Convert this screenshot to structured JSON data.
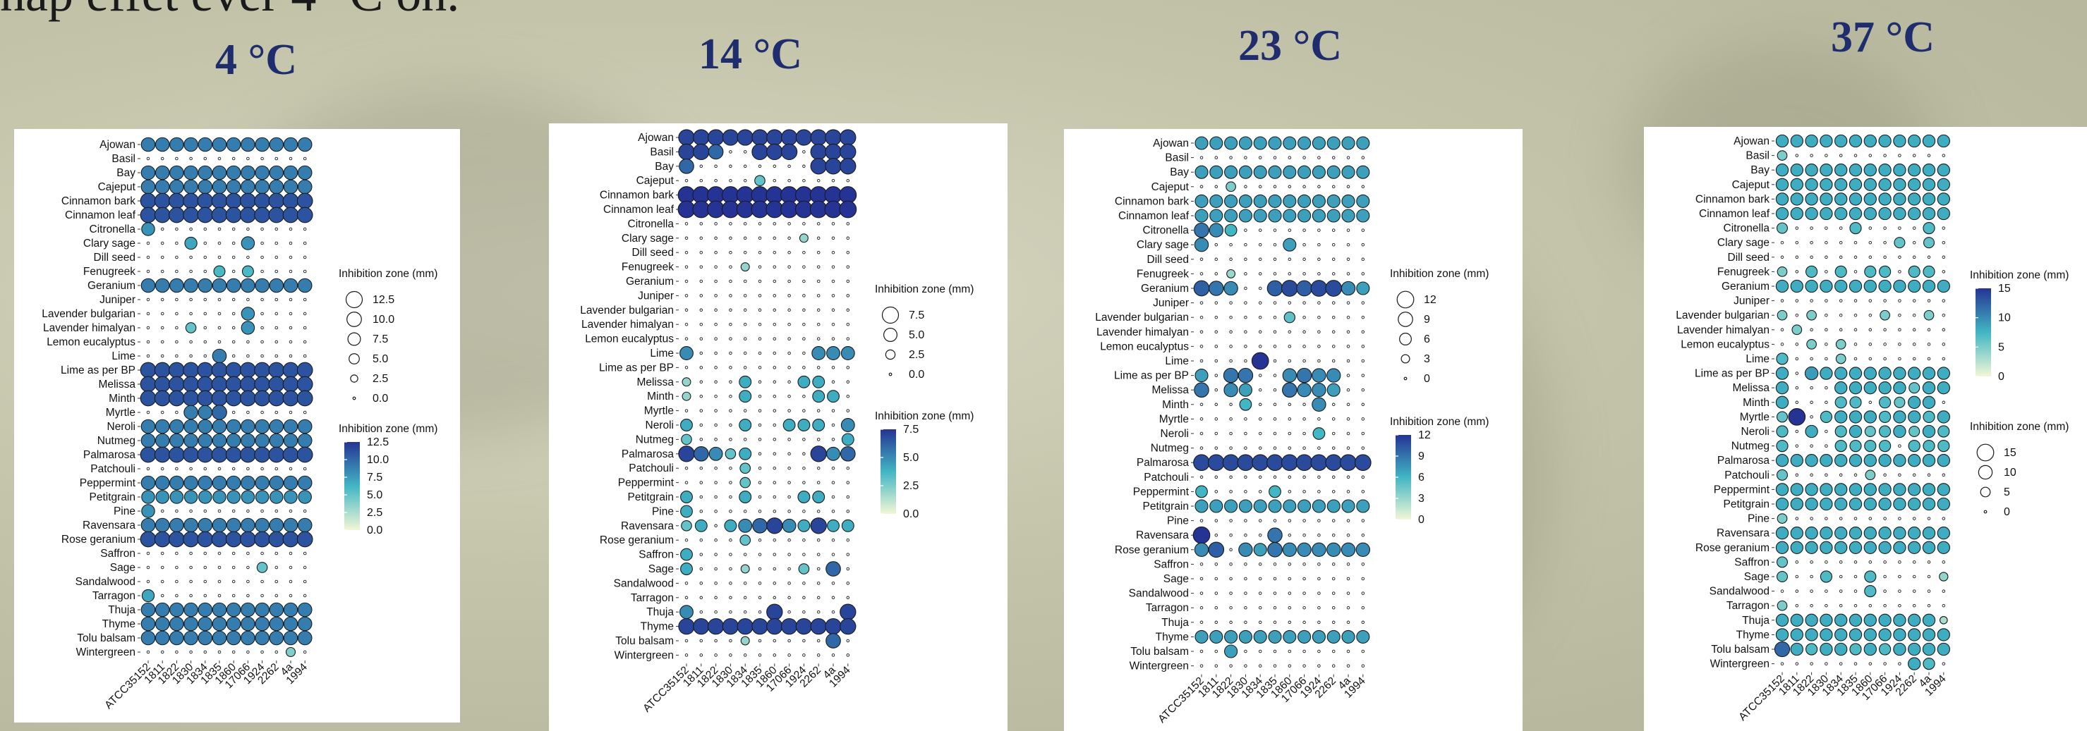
{
  "page": {
    "top_text": "nap effet ever 4 °C on.",
    "temperatures": [
      "4 °C",
      "14 °C",
      "23 °C",
      "37 °C"
    ]
  },
  "oils": [
    "Ajowan",
    "Basil",
    "Bay",
    "Cajeput",
    "Cinnamon bark",
    "Cinnamon leaf",
    "Citronella",
    "Clary sage",
    "Dill seed",
    "Fenugreek",
    "Geranium",
    "Juniper",
    "Lavender bulgarian",
    "Lavender himalyan",
    "Lemon eucalyptus",
    "Lime",
    "Lime as per BP",
    "Melissa",
    "Minth",
    "Myrtle",
    "Neroli",
    "Nutmeg",
    "Palmarosa",
    "Patchouli",
    "Peppermint",
    "Petitgrain",
    "Pine",
    "Ravensara",
    "Rose geranium",
    "Saffron",
    "Sage",
    "Sandalwood",
    "Tarragon",
    "Thuja",
    "Thyme",
    "Tolu balsam",
    "Wintergreen"
  ],
  "strains": [
    "ATCC35152",
    "1811",
    "1822",
    "1830",
    "1834",
    "1835",
    "1860",
    "17066",
    "1924",
    "2262",
    "4a",
    "1994"
  ],
  "colors": {
    "scale_low": "#f2f7d6",
    "scale_mid": "#41b6c4",
    "scale_high": "#253494",
    "title": "#1f2d6e"
  },
  "chart_data": [
    {
      "type": "bubble-matrix",
      "title": "4 °C",
      "legend_size_title": "Inhibition zone (mm)",
      "legend_size_values": [
        "12.5",
        "10.0",
        "7.5",
        "5.0",
        "2.5",
        "0.0"
      ],
      "legend_color_title": "Inhibition zone (mm)",
      "legend_color_values": [
        "12.5",
        "10.0",
        "7.5",
        "5.0",
        "2.5",
        "0.0"
      ],
      "max": 12.5,
      "full_rows": {
        "Ajowan": 9,
        "Bay": 9,
        "Cajeput": 9,
        "Cinnamon bark": 11,
        "Cinnamon leaf": 11,
        "Geranium": 9,
        "Lime as per BP": 11,
        "Melissa": 11,
        "Minth": 11,
        "Neroli": 9,
        "Nutmeg": 9,
        "Palmarosa": 11,
        "Peppermint": 9,
        "Petitgrain": 8,
        "Ravensara": 9,
        "Rose geranium": 11,
        "Thuja": 9,
        "Thyme": 9,
        "Tolu balsam": 9
      },
      "partial": {
        "Citronella": {
          "0": 8
        },
        "Clary sage": {
          "3": 7,
          "7": 8
        },
        "Fenugreek": {
          "5": 6,
          "7": 6
        },
        "Lavender bulgarian": {
          "7": 8
        },
        "Lavender himalyan": {
          "3": 5,
          "7": 8
        },
        "Lime": {
          "5": 9
        },
        "Myrtle": {
          "3": 9,
          "4": 9,
          "5": 10
        },
        "Pine": {
          "0": 8
        },
        "Sage": {
          "8": 5
        },
        "Tarragon": {
          "0": 7
        },
        "Wintergreen": {
          "10": 4
        }
      }
    },
    {
      "type": "bubble-matrix",
      "title": "14 °C",
      "legend_size_title": "Inhibition zone (mm)",
      "legend_size_values": [
        "7.5",
        "5.0",
        "2.5",
        "0.0"
      ],
      "legend_color_title": "Inhibition zone (mm)",
      "legend_color_values": [
        "7.5",
        "5.0",
        "2.5",
        "0.0"
      ],
      "max": 7.5,
      "full_rows": {
        "Ajowan": 7,
        "Cinnamon bark": 8,
        "Cinnamon leaf": 8,
        "Thyme": 7
      },
      "partial": {
        "Basil": {
          "0": 7,
          "1": 7,
          "2": 6,
          "5": 7,
          "6": 7,
          "7": 7,
          "9": 7,
          "10": 7,
          "11": 7
        },
        "Bay": {
          "0": 6,
          "9": 7,
          "10": 7,
          "11": 7
        },
        "Cajeput": {
          "5": 3
        },
        "Clary sage": {
          "8": 2
        },
        "Fenugreek": {
          "4": 2
        },
        "Lime": {
          "0": 5,
          "9": 5,
          "10": 5,
          "11": 5
        },
        "Melissa": {
          "0": 2,
          "4": 4,
          "8": 4,
          "9": 4
        },
        "Minth": {
          "0": 2,
          "4": 4,
          "9": 4,
          "10": 4
        },
        "Neroli": {
          "0": 4,
          "4": 4,
          "7": 4,
          "8": 4,
          "9": 4,
          "11": 5
        },
        "Nutmeg": {
          "0": 3,
          "11": 4
        },
        "Palmarosa": {
          "0": 7,
          "1": 6,
          "2": 5,
          "3": 3,
          "4": 4,
          "9": 7,
          "10": 5,
          "11": 6
        },
        "Patchouli": {
          "4": 3
        },
        "Peppermint": {
          "4": 3
        },
        "Petitgrain": {
          "0": 4,
          "4": 4,
          "8": 4,
          "9": 4
        },
        "Pine": {
          "0": 4
        },
        "Ravensara": {
          "0": 3,
          "1": 4,
          "3": 4,
          "4": 5,
          "5": 6,
          "6": 7,
          "7": 5,
          "8": 4,
          "9": 7,
          "10": 4,
          "11": 4
        },
        "Rose geranium": {
          "4": 3
        },
        "Saffron": {
          "0": 4
        },
        "Sage": {
          "0": 4,
          "4": 2,
          "8": 3,
          "10": 6
        },
        "Thuja": {
          "0": 5,
          "6": 7,
          "11": 7
        },
        "Tolu balsam": {
          "4": 2,
          "10": 6
        }
      }
    },
    {
      "type": "bubble-matrix",
      "title": "23 °C",
      "legend_size_title": "Inhibition zone (mm)",
      "legend_size_values": [
        "12",
        "9",
        "6",
        "3",
        "0"
      ],
      "legend_color_title": "Inhibition zone (mm)",
      "legend_color_values": [
        "12",
        "9",
        "6",
        "3",
        "0"
      ],
      "max": 12,
      "full_rows": {
        "Ajowan": 7,
        "Bay": 7,
        "Cinnamon bark": 7,
        "Cinnamon leaf": 7,
        "Palmarosa": 11,
        "Petitgrain": 7,
        "Thyme": 7
      },
      "partial": {
        "Cajeput": {
          "2": 4
        },
        "Citronella": {
          "0": 9,
          "1": 8,
          "2": 6
        },
        "Clary sage": {
          "0": 8,
          "6": 7
        },
        "Fenugreek": {
          "2": 3
        },
        "Geranium": {
          "0": 10,
          "1": 9,
          "2": 8,
          "5": 10,
          "6": 11,
          "7": 10,
          "8": 11,
          "9": 11,
          "10": 8,
          "11": 7
        },
        "Lavender bulgarian": {
          "6": 5
        },
        "Lime": {
          "4": 12
        },
        "Lime as per BP": {
          "0": 7,
          "2": 9,
          "3": 9,
          "6": 8,
          "7": 9,
          "8": 8,
          "9": 8
        },
        "Melissa": {
          "0": 9,
          "2": 8,
          "3": 7,
          "6": 9,
          "7": 8,
          "8": 8,
          "9": 7
        },
        "Minth": {
          "3": 6,
          "8": 8
        },
        "Neroli": {
          "8": 6
        },
        "Peppermint": {
          "0": 6,
          "5": 6
        },
        "Ravensara": {
          "0": 12,
          "5": 9
        },
        "Rose geranium": {
          "0": 8,
          "1": 10,
          "3": 8,
          "4": 7,
          "5": 9,
          "6": 8,
          "7": 8,
          "8": 8,
          "9": 8,
          "10": 8,
          "11": 8
        },
        "Tolu balsam": {
          "2": 7
        }
      }
    },
    {
      "type": "bubble-matrix",
      "title": "37 °C",
      "legend_size_title": "Inhibition zone (mm)",
      "legend_size_values": [
        "15",
        "10",
        "5",
        "0"
      ],
      "legend_color_title": "Inhibition zone (mm)",
      "legend_color_values": [
        "15",
        "10",
        "5",
        "0"
      ],
      "max": 15,
      "full_rows": {
        "Ajowan": 8,
        "Bay": 8,
        "Cajeput": 8,
        "Cinnamon bark": 8,
        "Cinnamon leaf": 8,
        "Geranium": 8,
        "Palmarosa": 8,
        "Peppermint": 8,
        "Petitgrain": 8,
        "Ravensara": 8,
        "Rose geranium": 8,
        "Thyme": 8
      },
      "partial": {
        "Basil": {
          "0": 5
        },
        "Citronella": {
          "0": 6,
          "5": 7,
          "10": 7
        },
        "Clary sage": {
          "8": 6,
          "10": 6
        },
        "Fenugreek": {
          "0": 5,
          "2": 7,
          "4": 7,
          "6": 7,
          "7": 7,
          "9": 7,
          "10": 7
        },
        "Lavender bulgarian": {
          "0": 5,
          "2": 5,
          "7": 5,
          "10": 5
        },
        "Lavender himalyan": {
          "1": 5
        },
        "Lemon eucalyptus": {
          "2": 5,
          "4": 5
        },
        "Lime": {
          "0": 7,
          "4": 5
        },
        "Lime as per BP": {
          "0": 8,
          "2": 9,
          "3": 8,
          "4": 8,
          "5": 8,
          "6": 8,
          "7": 8,
          "8": 8,
          "9": 8,
          "10": 8,
          "11": 8
        },
        "Melissa": {
          "0": 8,
          "4": 8,
          "5": 8,
          "6": 8,
          "7": 8,
          "8": 8,
          "9": 6,
          "10": 8,
          "11": 8
        },
        "Minth": {
          "0": 8,
          "4": 7,
          "5": 7,
          "7": 7,
          "8": 6,
          "9": 8,
          "10": 8
        },
        "Myrtle": {
          "0": 6,
          "1": 15,
          "3": 7,
          "4": 8,
          "5": 8,
          "6": 8,
          "7": 7,
          "8": 8,
          "9": 8,
          "10": 7,
          "11": 8
        },
        "Neroli": {
          "0": 7,
          "2": 8,
          "4": 7,
          "5": 8,
          "6": 6,
          "7": 7,
          "8": 8,
          "9": 6,
          "10": 8,
          "11": 7
        },
        "Nutmeg": {
          "0": 7,
          "4": 7,
          "5": 7,
          "6": 7,
          "7": 7,
          "9": 7,
          "10": 7,
          "11": 7
        },
        "Patchouli": {
          "0": 6,
          "6": 5
        },
        "Pine": {
          "0": 5
        },
        "Saffron": {
          "0": 6
        },
        "Sage": {
          "0": 6,
          "3": 7,
          "6": 7,
          "11": 4
        },
        "Sandalwood": {
          "6": 7
        },
        "Tarragon": {
          "0": 5
        },
        "Thuja": {
          "0": 8,
          "1": 8,
          "2": 8,
          "3": 8,
          "4": 8,
          "5": 8,
          "6": 8,
          "7": 8,
          "8": 8,
          "9": 8,
          "10": 8,
          "11": 3
        },
        "Tolu balsam": {
          "0": 12,
          "1": 8,
          "2": 7,
          "3": 8,
          "4": 8,
          "5": 7,
          "6": 8,
          "7": 7,
          "8": 8,
          "9": 8,
          "10": 8,
          "11": 8
        },
        "Wintergreen": {
          "9": 8,
          "10": 7
        }
      }
    }
  ]
}
